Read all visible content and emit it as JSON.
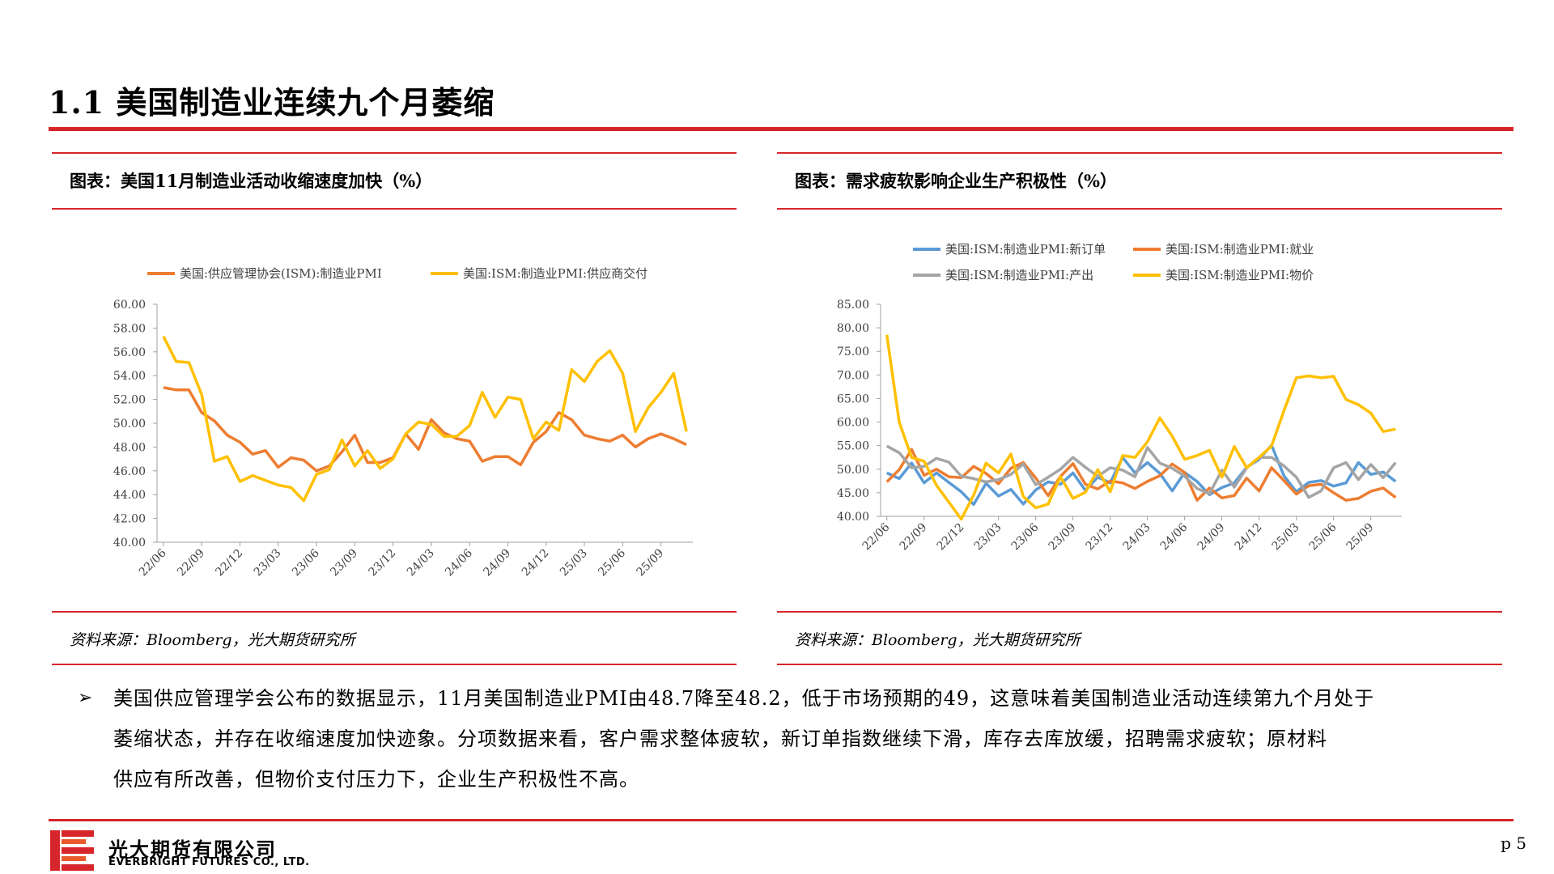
{
  "page": {
    "title": "1.1 美国制造业连续九个月萎缩",
    "page_number": "p 5",
    "logo_cn": "光大期货有限公司",
    "logo_en": "EVERBRIGHT FUTURES CO., LTD.",
    "brand_color": "#d7262b"
  },
  "left_chart": {
    "caption": "图表：美国11月制造业活动收缩速度加快（%）",
    "source": "资料来源：Bloomberg，光大期货研究所"
  },
  "right_chart": {
    "caption": "图表：需求疲软影响企业生产积极性（%）",
    "source": "资料来源：Bloomberg，光大期货研究所"
  },
  "bullet": {
    "mark": "➢",
    "lines": [
      "美国供应管理学会公布的数据显示，11月美国制造业PMI由48.7降至48.2，低于市场预期的49，这意味着美国制造业活动连续第九个月处于",
      "萎缩状态，并存在收缩速度加快迹象。分项数据来看，客户需求整体疲软，新订单指数继续下滑，库存去库放缓，招聘需求疲软；原材料",
      "供应有所改善，但物价支付压力下，企业生产积极性不高。"
    ]
  },
  "chart_data": [
    {
      "type": "line",
      "x": [
        "22/06",
        "22/07",
        "22/08",
        "22/09",
        "22/10",
        "22/11",
        "22/12",
        "23/01",
        "23/02",
        "23/03",
        "23/04",
        "23/05",
        "23/06",
        "23/07",
        "23/08",
        "23/09",
        "23/10",
        "23/11",
        "23/12",
        "24/01",
        "24/02",
        "24/03",
        "24/04",
        "24/05",
        "24/06",
        "24/07",
        "24/08",
        "24/09",
        "24/10",
        "24/11",
        "24/12",
        "25/01",
        "25/02",
        "25/03",
        "25/04",
        "25/05",
        "25/06",
        "25/07",
        "25/08",
        "25/09",
        "25/10",
        "25/11"
      ],
      "x_tick_labels": [
        "22/06",
        "22/09",
        "22/12",
        "23/03",
        "23/06",
        "23/09",
        "23/12",
        "24/03",
        "24/06",
        "24/09",
        "24/12",
        "25/03",
        "25/06",
        "25/09"
      ],
      "y_tick_labels": [
        "40.00",
        "42.00",
        "44.00",
        "46.00",
        "48.00",
        "50.00",
        "52.00",
        "54.00",
        "56.00",
        "58.00",
        "60.00"
      ],
      "ylim": [
        40,
        60
      ],
      "legend_position": "top",
      "series": [
        {
          "name": "美国:供应管理协会(ISM):制造业PMI",
          "color": "#ed7d31",
          "values": [
            53.0,
            52.8,
            52.8,
            50.9,
            50.2,
            49.0,
            48.4,
            47.4,
            47.7,
            46.3,
            47.1,
            46.9,
            46.0,
            46.4,
            47.6,
            49.0,
            46.7,
            46.7,
            47.1,
            49.1,
            47.8,
            50.3,
            49.2,
            48.7,
            48.5,
            46.8,
            47.2,
            47.2,
            46.5,
            48.4,
            49.3,
            50.9,
            50.3,
            49.0,
            48.7,
            48.5,
            49.0,
            48.0,
            48.7,
            49.1,
            48.7,
            48.2
          ]
        },
        {
          "name": "美国:ISM:制造业PMI:供应商交付",
          "color": "#ffc000",
          "values": [
            57.3,
            55.2,
            55.1,
            52.4,
            46.8,
            47.2,
            45.1,
            45.6,
            45.2,
            44.8,
            44.6,
            43.5,
            45.7,
            46.1,
            48.6,
            46.4,
            47.7,
            46.2,
            47.0,
            49.1,
            50.1,
            49.9,
            48.9,
            48.9,
            49.8,
            52.6,
            50.5,
            52.2,
            52.0,
            48.7,
            50.1,
            49.4,
            54.5,
            53.5,
            55.2,
            56.1,
            54.2,
            49.3,
            51.3,
            52.6,
            54.2,
            49.3
          ]
        }
      ]
    },
    {
      "type": "line",
      "x": [
        "22/06",
        "22/07",
        "22/08",
        "22/09",
        "22/10",
        "22/11",
        "22/12",
        "23/01",
        "23/02",
        "23/03",
        "23/04",
        "23/05",
        "23/06",
        "23/07",
        "23/08",
        "23/09",
        "23/10",
        "23/11",
        "23/12",
        "24/01",
        "24/02",
        "24/03",
        "24/04",
        "24/05",
        "24/06",
        "24/07",
        "24/08",
        "24/09",
        "24/10",
        "24/11",
        "24/12",
        "25/01",
        "25/02",
        "25/03",
        "25/04",
        "25/05",
        "25/06",
        "25/07",
        "25/08",
        "25/09",
        "25/10",
        "25/11"
      ],
      "x_tick_labels": [
        "22/06",
        "22/09",
        "22/12",
        "23/03",
        "23/06",
        "23/09",
        "23/12",
        "24/03",
        "24/06",
        "24/09",
        "24/12",
        "25/03",
        "25/06",
        "25/09"
      ],
      "y_tick_labels": [
        "40.00",
        "45.00",
        "50.00",
        "55.00",
        "60.00",
        "65.00",
        "70.00",
        "75.00",
        "80.00",
        "85.00"
      ],
      "ylim": [
        40,
        85
      ],
      "legend_position": "top",
      "series": [
        {
          "name": "美国:ISM:制造业PMI:新订单",
          "color": "#5b9bd5",
          "values": [
            49.2,
            48.0,
            51.3,
            47.1,
            49.2,
            47.2,
            45.2,
            42.5,
            47.0,
            44.3,
            45.7,
            42.6,
            45.6,
            47.3,
            46.8,
            49.2,
            45.5,
            48.3,
            47.1,
            52.5,
            49.2,
            51.4,
            49.1,
            45.4,
            49.3,
            47.4,
            44.6,
            46.1,
            47.1,
            50.4,
            52.1,
            55.1,
            48.6,
            45.2,
            47.2,
            47.6,
            46.4,
            47.1,
            51.4,
            48.9,
            49.4,
            47.4
          ]
        },
        {
          "name": "美国:ISM:制造业PMI:就业",
          "color": "#ed7d31",
          "values": [
            47.3,
            49.9,
            54.2,
            48.7,
            50.0,
            48.4,
            48.2,
            50.6,
            49.1,
            46.9,
            50.2,
            51.4,
            48.1,
            44.4,
            48.5,
            51.2,
            46.8,
            45.8,
            47.5,
            47.1,
            45.9,
            47.4,
            48.6,
            51.1,
            49.3,
            43.4,
            46.0,
            43.9,
            44.4,
            48.1,
            45.4,
            50.3,
            47.6,
            44.7,
            46.5,
            46.8,
            45.0,
            43.4,
            43.8,
            45.3,
            46.0,
            44.0
          ]
        },
        {
          "name": "美国:ISM:制造业PMI:产出",
          "color": "#a5a5a5",
          "values": [
            54.9,
            53.5,
            50.3,
            50.6,
            52.3,
            51.5,
            48.5,
            48.0,
            47.3,
            47.8,
            48.9,
            51.1,
            46.7,
            48.3,
            50.0,
            52.5,
            50.4,
            48.5,
            50.3,
            49.8,
            48.4,
            54.6,
            51.3,
            50.2,
            48.5,
            45.9,
            44.8,
            49.8,
            46.2,
            50.3,
            52.5,
            52.5,
            50.7,
            48.3,
            44.0,
            45.4,
            50.3,
            51.4,
            47.8,
            51.0,
            48.2,
            51.4
          ]
        },
        {
          "name": "美国:ISM:制造业PMI:物价",
          "color": "#ffc000",
          "values": [
            78.5,
            60.0,
            52.5,
            51.7,
            46.6,
            43.0,
            39.4,
            44.5,
            51.3,
            49.2,
            53.2,
            44.2,
            41.8,
            42.6,
            48.4,
            43.8,
            45.1,
            49.9,
            45.2,
            52.9,
            52.5,
            55.8,
            60.9,
            57.0,
            52.1,
            52.9,
            54.0,
            48.3,
            54.8,
            50.3,
            52.5,
            54.9,
            62.4,
            69.4,
            69.8,
            69.4,
            69.7,
            64.8,
            63.7,
            61.9,
            58.0,
            58.5
          ]
        }
      ]
    }
  ]
}
